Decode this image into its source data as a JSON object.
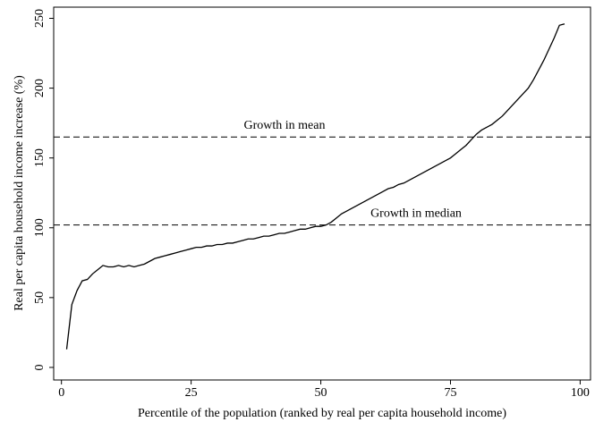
{
  "chart_data": {
    "type": "line",
    "xlabel": "Percentile of the population (ranked by real per capita household income)",
    "ylabel": "Real per capita household income increase (%)",
    "x": [
      1,
      2,
      3,
      4,
      5,
      6,
      7,
      8,
      9,
      10,
      11,
      12,
      13,
      14,
      15,
      16,
      17,
      18,
      19,
      20,
      21,
      22,
      23,
      24,
      25,
      26,
      27,
      28,
      29,
      30,
      31,
      32,
      33,
      34,
      35,
      36,
      37,
      38,
      39,
      40,
      41,
      42,
      43,
      44,
      45,
      46,
      47,
      48,
      49,
      50,
      51,
      52,
      53,
      54,
      55,
      56,
      57,
      58,
      59,
      60,
      61,
      62,
      63,
      64,
      65,
      66,
      67,
      68,
      69,
      70,
      71,
      72,
      73,
      74,
      75,
      76,
      77,
      78,
      79,
      80,
      81,
      82,
      83,
      84,
      85,
      86,
      87,
      88,
      89,
      90,
      91,
      92,
      93,
      94,
      95,
      96,
      97
    ],
    "values": [
      13,
      45,
      55,
      62,
      63,
      67,
      70,
      73,
      72,
      72,
      73,
      72,
      73,
      72,
      73,
      74,
      76,
      78,
      79,
      80,
      81,
      82,
      83,
      84,
      85,
      86,
      86,
      87,
      87,
      88,
      88,
      89,
      89,
      90,
      91,
      92,
      92,
      93,
      94,
      94,
      95,
      96,
      96,
      97,
      98,
      99,
      99,
      100,
      101,
      101,
      102,
      104,
      107,
      110,
      112,
      114,
      116,
      118,
      120,
      122,
      124,
      126,
      128,
      129,
      131,
      132,
      134,
      136,
      138,
      140,
      142,
      144,
      146,
      148,
      150,
      153,
      156,
      159,
      163,
      167,
      170,
      172,
      174,
      177,
      180,
      184,
      188,
      192,
      196,
      200,
      206,
      213,
      220,
      228,
      236,
      245,
      246
    ],
    "color": "#000000",
    "hlines": [
      {
        "value": 165,
        "label": "Growth in mean"
      },
      {
        "value": 102,
        "label": "Growth in median"
      }
    ],
    "xlim": [
      -1.5,
      102
    ],
    "ylim": [
      -9,
      258
    ],
    "xticks": [
      0,
      25,
      50,
      75,
      100
    ],
    "yticks": [
      0,
      50,
      100,
      150,
      200,
      250
    ]
  }
}
